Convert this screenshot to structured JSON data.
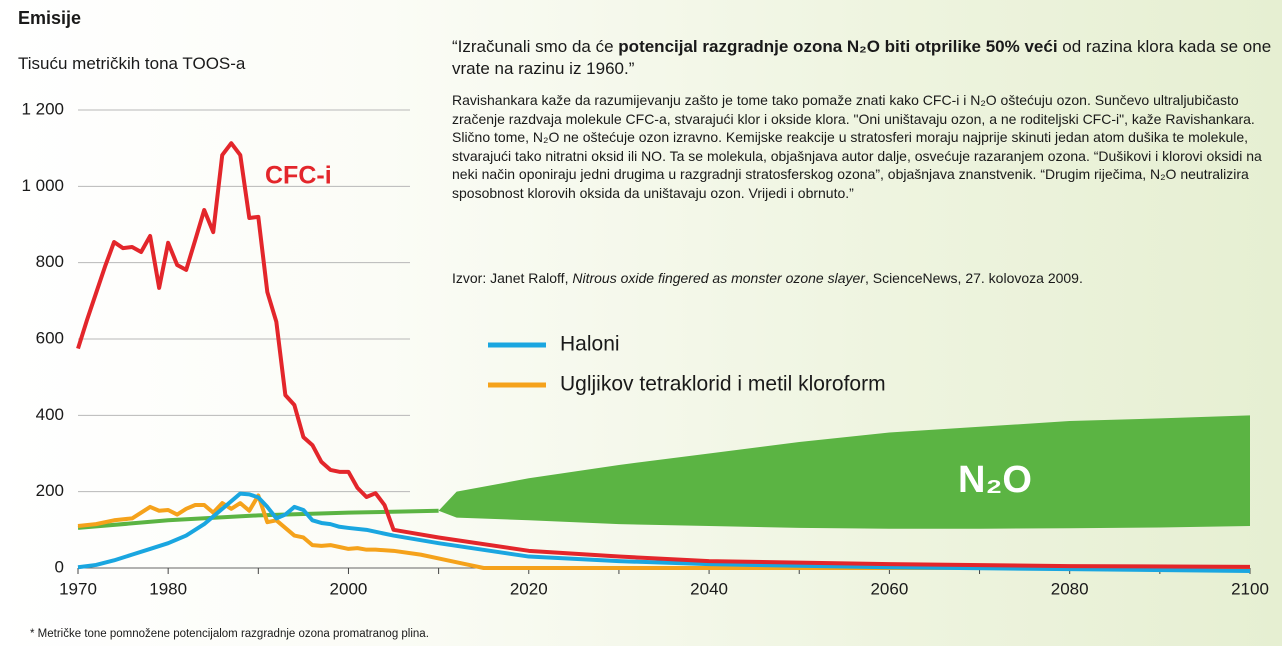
{
  "chart_data": {
    "type": "line",
    "title": "Emisije",
    "y_label": "Tisuću metričkih tona TOOS-a",
    "footnote": "* Metričke tone pomnožene potencijalom razgradnje ozona promatranog plina.",
    "xlim": [
      1970,
      2100
    ],
    "ylim": [
      0,
      1200
    ],
    "xticks": [
      1970,
      1980,
      2000,
      2020,
      2040,
      2060,
      2080,
      2100
    ],
    "xminor_ticks": [
      1990,
      2010,
      2030,
      2050,
      2070,
      2090
    ],
    "yticks": [
      0,
      200,
      400,
      600,
      800,
      {
        "value": 1000,
        "label": "1 000"
      },
      {
        "value": 1200,
        "label": "1 200"
      }
    ],
    "grid": true,
    "series": [
      {
        "name": "CFC-i",
        "color": "#e3262b",
        "label_style": "direct",
        "x": [
          1970,
          1971,
          1972,
          1973,
          1974,
          1975,
          1976,
          1977,
          1978,
          1979,
          1980,
          1981,
          1982,
          1983,
          1984,
          1985,
          1986,
          1987,
          1988,
          1989,
          1990,
          1991,
          1992,
          1993,
          1994,
          1995,
          1996,
          1997,
          1998,
          1999,
          2000,
          2001,
          2002,
          2003,
          2004,
          2005,
          2010,
          2020,
          2030,
          2040,
          2060,
          2080,
          2100
        ],
        "values": [
          575,
          650,
          720,
          790,
          854,
          838,
          841,
          828,
          870,
          734,
          852,
          794,
          781,
          859,
          938,
          880,
          1082,
          1113,
          1082,
          917,
          920,
          723,
          645,
          453,
          427,
          343,
          322,
          278,
          257,
          252,
          252,
          210,
          186,
          196,
          165,
          100,
          80,
          45,
          30,
          18,
          10,
          5,
          3
        ]
      },
      {
        "name": "Haloni",
        "color": "#1aa6e0",
        "label_style": "legend",
        "x": [
          1970,
          1972,
          1974,
          1976,
          1978,
          1980,
          1982,
          1984,
          1986,
          1988,
          1989,
          1990,
          1991,
          1992,
          1993,
          1994,
          1995,
          1996,
          1997,
          1998,
          1999,
          2000,
          2002,
          2005,
          2010,
          2020,
          2030,
          2040,
          2060,
          2080,
          2100
        ],
        "values": [
          2,
          8,
          20,
          35,
          50,
          65,
          85,
          115,
          155,
          195,
          193,
          185,
          160,
          130,
          140,
          160,
          152,
          125,
          118,
          115,
          108,
          105,
          100,
          85,
          65,
          30,
          18,
          10,
          2,
          -3,
          -8
        ]
      },
      {
        "name": "Ugljikov tetraklorid i metil kloroform",
        "color": "#f5a21b",
        "label_style": "legend",
        "x": [
          1970,
          1972,
          1974,
          1976,
          1978,
          1979,
          1980,
          1981,
          1982,
          1983,
          1984,
          1985,
          1986,
          1987,
          1988,
          1989,
          1990,
          1991,
          1992,
          1993,
          1994,
          1995,
          1996,
          1997,
          1998,
          1999,
          2000,
          2001,
          2002,
          2003,
          2005,
          2008,
          2010,
          2013,
          2015,
          2100
        ],
        "values": [
          110,
          115,
          125,
          130,
          160,
          150,
          152,
          140,
          155,
          165,
          165,
          145,
          170,
          155,
          170,
          150,
          190,
          120,
          125,
          105,
          85,
          80,
          60,
          58,
          60,
          55,
          50,
          52,
          48,
          48,
          45,
          35,
          25,
          10,
          0,
          0
        ]
      },
      {
        "name": "N₂O",
        "color": "#5bb443",
        "label_style": "direct",
        "x": [
          1970,
          1980,
          1990,
          2000,
          2010
        ],
        "values": [
          105,
          125,
          138,
          145,
          150
        ],
        "band": {
          "x": [
            2010,
            2012,
            2020,
            2030,
            2040,
            2050,
            2060,
            2070,
            2080,
            2090,
            2100
          ],
          "low": [
            150,
            132,
            125,
            115,
            110,
            105,
            103,
            103,
            104,
            106,
            110
          ],
          "high": [
            150,
            200,
            235,
            270,
            300,
            330,
            355,
            370,
            385,
            392,
            400
          ]
        }
      }
    ],
    "text": {
      "quote": [
        {
          "text": "“Izračunali smo da će ",
          "bold": false
        },
        {
          "text": "potencijal razgradnje ozona N₂O biti otprilike 50% veći",
          "bold": true
        },
        {
          "text": " od razina klora kada se one vrate na razinu iz 1960.”",
          "bold": false
        }
      ],
      "body": "Ravishankara kaže da razumijevanju zašto je tome tako pomaže znati kako CFC-i i N₂O oštećuju ozon. Sunčevo ultraljubičasto zračenje razdvaja molekule CFC-a, stvarajući klor i okside klora. \"Oni uništavaju ozon, a ne roditeljski CFC-i\", kaže Ravishankara. Slično tome, N₂O ne oštećuje ozon izravno. Kemijske reakcije u stratosferi moraju najprije skinuti jedan atom dušika te molekule, stvarajući tako nitratni oksid ili NO. Ta se molekula, objašnjava autor dalje, osvećuje razaranjem ozona. “Dušikovi i klorovi oksidi na neki način oponiraju jedni drugima u razgradnji stratosferskog ozona”, objašnjava znanstvenik. “Drugim riječima, N₂O neutralizira sposobnost klorovih oksida da uništavaju ozon. Vrijedi i obrnuto.”",
      "source": [
        {
          "text": "Izvor: Janet Raloff, ",
          "italic": false
        },
        {
          "text": "Nitrous oxide fingered as monster ozone slayer",
          "italic": true
        },
        {
          "text": ", ScienceNews, 27. kolovoza 2009.",
          "italic": false
        }
      ]
    }
  }
}
